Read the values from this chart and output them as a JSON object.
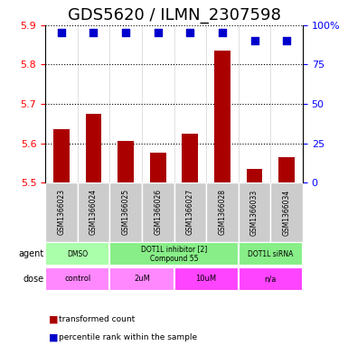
{
  "title": "GDS5620 / ILMN_2307598",
  "samples": [
    "GSM1366023",
    "GSM1366024",
    "GSM1366025",
    "GSM1366026",
    "GSM1366027",
    "GSM1366028",
    "GSM1366033",
    "GSM1366034"
  ],
  "bar_values": [
    5.635,
    5.675,
    5.605,
    5.575,
    5.625,
    5.835,
    5.535,
    5.565
  ],
  "percentile_values": [
    95,
    95,
    95,
    95,
    95,
    95,
    90,
    90
  ],
  "ylim": [
    5.5,
    5.9
  ],
  "yticks": [
    5.5,
    5.6,
    5.7,
    5.8,
    5.9
  ],
  "right_yticks": [
    0,
    25,
    50,
    75,
    100
  ],
  "right_ylabels": [
    "0",
    "25",
    "50",
    "75",
    "100%"
  ],
  "bar_color": "#aa0000",
  "dot_color": "#0000cc",
  "bar_bottom": 5.5,
  "agents": [
    {
      "label": "DMSO",
      "start": 0,
      "end": 2,
      "color": "#aaffaa"
    },
    {
      "label": "DOT1L inhibitor [2]\nCompound 55",
      "start": 2,
      "end": 6,
      "color": "#88ee88"
    },
    {
      "label": "DOT1L siRNA",
      "start": 6,
      "end": 8,
      "color": "#88ee88"
    }
  ],
  "doses": [
    {
      "label": "control",
      "start": 0,
      "end": 2,
      "color": "#ff88ff"
    },
    {
      "label": "2uM",
      "start": 2,
      "end": 4,
      "color": "#ff88ff"
    },
    {
      "label": "10uM",
      "start": 4,
      "end": 6,
      "color": "#ff44ff"
    },
    {
      "label": "n/a",
      "start": 6,
      "end": 8,
      "color": "#ff44ff"
    }
  ],
  "legend_items": [
    {
      "color": "#aa0000",
      "label": "transformed count"
    },
    {
      "color": "#0000cc",
      "label": "percentile rank within the sample"
    }
  ],
  "agent_label": "agent",
  "dose_label": "dose",
  "title_fontsize": 13,
  "axis_fontsize": 9,
  "tick_fontsize": 8,
  "label_fontsize": 8.5
}
